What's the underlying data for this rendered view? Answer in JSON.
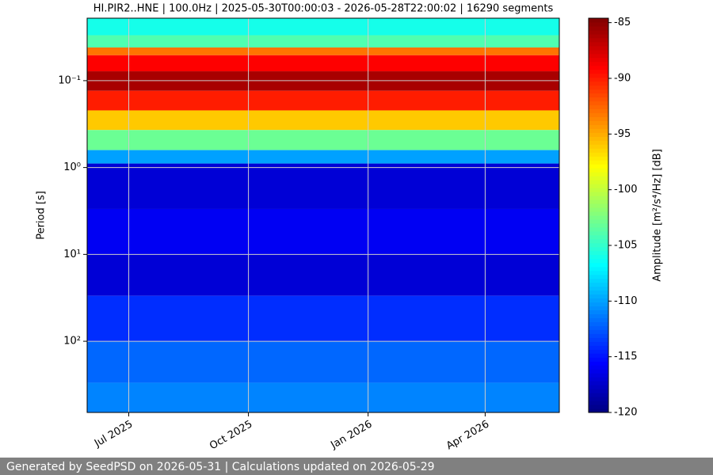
{
  "chart_data": {
    "type": "spectrogram",
    "title": "HI.PIR2..HNE | 100.0Hz | 2025-05-30T00:00:03 - 2026-05-28T22:00:02 | 16290 segments",
    "y_label": "Period [s]",
    "colorbar_label": "Amplitude [m²/s⁴/Hz] [dB]",
    "xlim": [
      "2025-05-30",
      "2026-05-28"
    ],
    "xticks": [
      {
        "value": "2025-07-01",
        "label": "Jul 2025"
      },
      {
        "value": "2025-10-01",
        "label": "Oct 2025"
      },
      {
        "value": "2026-01-01",
        "label": "Jan 2026"
      },
      {
        "value": "2026-04-01",
        "label": "Apr 2026"
      }
    ],
    "ylim": [
      0.0191,
      660
    ],
    "log_y": true,
    "y_inverted": true,
    "yticks": [
      {
        "value": 0.1,
        "label": "10⁻¹"
      },
      {
        "value": 1,
        "label": "10⁰"
      },
      {
        "value": 10,
        "label": "10¹"
      },
      {
        "value": 100,
        "label": "10²"
      }
    ],
    "periods": [
      0.0191,
      0.03,
      0.0415,
      0.051,
      0.078,
      0.131,
      0.22,
      0.37,
      0.63,
      0.9,
      3,
      10,
      30,
      100,
      300,
      660
    ],
    "amplitudes": [
      -106,
      -104,
      -93,
      -89,
      -86,
      -90,
      -96,
      -103,
      -110,
      -117,
      -116,
      -117,
      -114,
      -112,
      -111
    ],
    "clim": [
      -120,
      -84.6
    ],
    "cticks": [
      -85,
      -90,
      -95,
      -100,
      -105,
      -110,
      -115,
      -120
    ],
    "colormap": "jet",
    "grid": true
  },
  "footer": "Generated by SeedPSD on 2026-05-31 | Calculations updated on 2026-05-29"
}
